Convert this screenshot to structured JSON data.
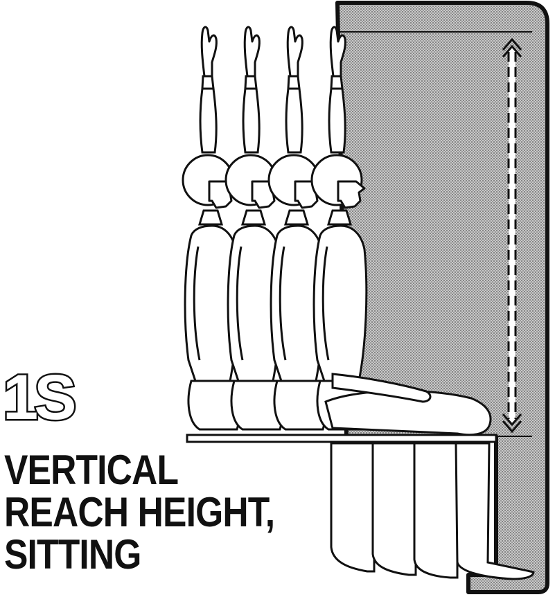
{
  "figure": {
    "code": "1S",
    "title_lines": [
      "VERTICAL",
      "REACH HEIGHT,",
      "SITTING"
    ],
    "figures_count": 4
  },
  "colors": {
    "ink": "#111111",
    "wall_fill": "stipple-gray",
    "background": "#ffffff"
  },
  "icons": {
    "measurement_arrow": "double-headed-dashed-arrow"
  }
}
